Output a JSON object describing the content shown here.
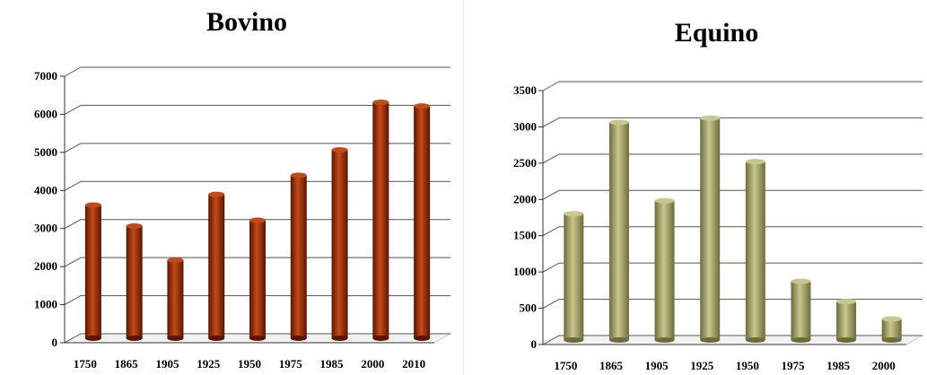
{
  "colors": {
    "bovino_bar": "#8b2500",
    "bovino_bar_light": "#c44a1a",
    "bovino_bar_dark": "#5a1500",
    "equino_bar": "#9c9a5e",
    "equino_bar_light": "#c9c78f",
    "equino_bar_dark": "#6d6b3a",
    "gridline": "#555555",
    "floor": "#cccccc"
  },
  "chart_data": [
    {
      "type": "bar",
      "title": "Bovino",
      "categories": [
        "1750",
        "1865",
        "1905",
        "1925",
        "1950",
        "1975",
        "1985",
        "2000",
        "2010"
      ],
      "values": [
        3500,
        2950,
        2050,
        3780,
        3100,
        4280,
        4950,
        6200,
        6100
      ],
      "ylim": [
        0,
        7000
      ],
      "yticks": [
        0,
        1000,
        2000,
        3000,
        4000,
        5000,
        6000,
        7000
      ],
      "ytick_labels": [
        "0",
        "1000",
        "2000",
        "3000",
        "4000",
        "5000",
        "6000",
        "7000"
      ],
      "grid": true,
      "xlabel": "",
      "ylabel": ""
    },
    {
      "type": "bar",
      "title": "Equino",
      "categories": [
        "1750",
        "1865",
        "1905",
        "1925",
        "1950",
        "1975",
        "1985",
        "2000"
      ],
      "values": [
        1740,
        3000,
        1920,
        3060,
        2460,
        810,
        530,
        290
      ],
      "ylim": [
        0,
        3500
      ],
      "yticks": [
        0,
        500,
        1000,
        1500,
        2000,
        2500,
        3000,
        3500
      ],
      "ytick_labels": [
        "0",
        "500",
        "1000",
        "1500",
        "2000",
        "2500",
        "3000",
        "3500"
      ],
      "grid": true,
      "xlabel": "",
      "ylabel": ""
    }
  ]
}
